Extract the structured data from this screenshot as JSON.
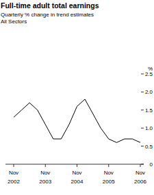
{
  "chart_data": {
    "type": "line",
    "title": "Full-time adult total earnings",
    "subtitle": [
      "Quarterly % change in trend estimates",
      "All Sectors"
    ],
    "y_label": "%",
    "categories": [
      "Nov 2002",
      null,
      null,
      null,
      "Nov 2003",
      null,
      null,
      null,
      "Nov 2004",
      null,
      null,
      null,
      "Nov 2005",
      null,
      null,
      null,
      "Nov 2006"
    ],
    "values": [
      1.3,
      1.5,
      1.7,
      1.5,
      1.1,
      0.7,
      0.7,
      1.1,
      1.6,
      1.8,
      1.4,
      1.0,
      0.7,
      0.6,
      0.7,
      0.7,
      0.6
    ],
    "color": "#000000",
    "ylim": [
      0,
      2.5
    ],
    "yticks": [
      0,
      0.5,
      {
        "value": 1,
        "label": "1.0"
      },
      1.5,
      {
        "value": 2,
        "label": "2.0"
      },
      2.5
    ],
    "grid": false
  }
}
